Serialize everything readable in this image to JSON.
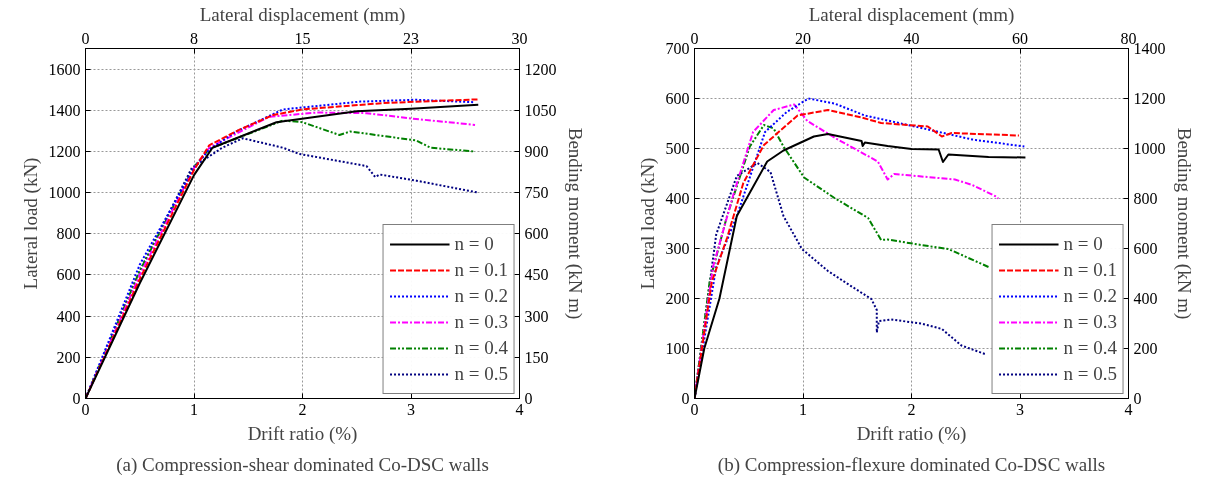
{
  "chart_data": [
    {
      "type": "line",
      "xlabel": "Drift ratio (%)",
      "ylabel": "Lateral load (kN)",
      "y2label": "Bending moment (kN m)",
      "x2label": "Lateral displacement (mm)",
      "annotations": [
        "(a) Compression-shear dominated Co-DSC walls"
      ],
      "xlim": [
        0,
        4
      ],
      "xticks": [
        0,
        1,
        2,
        3,
        4
      ],
      "ylim": [
        0,
        1700
      ],
      "yticks": [
        0,
        200,
        400,
        600,
        800,
        1000,
        1200,
        1400,
        1600
      ],
      "y2lim": [
        0,
        1275
      ],
      "y2ticks": [
        0,
        150,
        300,
        450,
        600,
        750,
        900,
        1050,
        1200
      ],
      "x2lim": [
        0,
        30
      ],
      "x2ticks": [
        0,
        {
          "value": 7.5,
          "label": "8"
        },
        15,
        {
          "value": 22.5,
          "label": "23"
        },
        30
      ],
      "grid": true,
      "legend": "bottom right",
      "series": [
        {
          "name": "n = 0",
          "color": "#000000",
          "line_style": "solid",
          "x": [
            0,
            0.5,
            1.0,
            1.17,
            1.76,
            2.5,
            3.0,
            3.62
          ],
          "values": [
            0,
            560,
            1085,
            1218,
            1342,
            1395,
            1407,
            1427
          ]
        },
        {
          "name": "n = 0.1",
          "color": "#ff0000",
          "line_style": "dashed",
          "x": [
            0,
            0.5,
            1.0,
            1.14,
            1.42,
            1.73,
            2.0,
            2.74,
            3.62
          ],
          "values": [
            0,
            580,
            1110,
            1230,
            1306,
            1377,
            1404,
            1435,
            1453
          ]
        },
        {
          "name": "n = 0.2",
          "color": "#0000ff",
          "line_style": "dotted",
          "x": [
            0,
            0.5,
            1.0,
            1.14,
            1.39,
            1.82,
            2.53,
            3.05,
            3.58
          ],
          "values": [
            0,
            650,
            1120,
            1209,
            1297,
            1404,
            1442,
            1451,
            1439
          ]
        },
        {
          "name": "n = 0.3",
          "color": "#ff00ff",
          "line_style": "dashdot",
          "x": [
            0,
            0.5,
            1.0,
            1.14,
            1.69,
            2.13,
            2.59,
            3.02,
            3.59
          ],
          "values": [
            0,
            600,
            1120,
            1218,
            1368,
            1389,
            1386,
            1359,
            1329
          ]
        },
        {
          "name": "n = 0.4",
          "color": "#008000",
          "line_style": "dashdotdot",
          "x": [
            0,
            0.5,
            1.0,
            1.14,
            1.82,
            2.0,
            2.34,
            2.44,
            3.05,
            3.18,
            3.58
          ],
          "values": [
            0,
            620,
            1125,
            1212,
            1350,
            1342,
            1280,
            1297,
            1253,
            1218,
            1200
          ]
        },
        {
          "name": "n = 0.5",
          "color": "#000080",
          "line_style": "dotted",
          "x": [
            0,
            0.5,
            0.98,
            1.26,
            1.45,
            1.82,
            1.97,
            2.59,
            2.67,
            2.71,
            3.05,
            3.62
          ],
          "values": [
            0,
            620,
            1120,
            1218,
            1264,
            1218,
            1188,
            1129,
            1076,
            1088,
            1058,
            1000
          ]
        }
      ]
    },
    {
      "type": "line",
      "xlabel": "Drift ratio (%)",
      "ylabel": "Lateral load (kN)",
      "y2label": "Bending moment (kN m)",
      "x2label": "Lateral displacement (mm)",
      "annotations": [
        "(b) Compression-flexure dominated Co-DSC walls"
      ],
      "xlim": [
        0,
        4
      ],
      "xticks": [
        0,
        1,
        2,
        3,
        4
      ],
      "ylim": [
        0,
        700
      ],
      "yticks": [
        0,
        100,
        200,
        300,
        400,
        500,
        600,
        700
      ],
      "y2lim": [
        0,
        1400
      ],
      "y2ticks": [
        0,
        200,
        400,
        600,
        800,
        1000,
        1200,
        1400
      ],
      "x2lim": [
        0,
        80
      ],
      "x2ticks": [
        0,
        20,
        40,
        60,
        80
      ],
      "grid": true,
      "legend": "bottom right",
      "series": [
        {
          "name": "n = 0",
          "color": "#000000",
          "line_style": "solid",
          "x": [
            0,
            0.09,
            0.23,
            0.39,
            0.67,
            0.82,
            1.1,
            1.23,
            1.54,
            1.55,
            1.57,
            1.78,
            2.0,
            2.25,
            2.29,
            2.34,
            2.71,
            3.05
          ],
          "values": [
            0,
            100,
            200,
            365,
            474,
            496,
            524,
            529,
            515,
            505,
            512,
            505,
            499,
            498,
            473,
            488,
            483,
            482
          ]
        },
        {
          "name": "n = 0.1",
          "color": "#ff0000",
          "line_style": "dashed",
          "x": [
            0,
            0.16,
            0.3,
            0.45,
            0.64,
            0.95,
            1.23,
            1.54,
            1.72,
            2.15,
            2.28,
            2.37,
            2.99
          ],
          "values": [
            0,
            234,
            321,
            431,
            507,
            566,
            577,
            562,
            551,
            544,
            524,
            531,
            526
          ]
        },
        {
          "name": "n = 0.2",
          "color": "#0000ff",
          "line_style": "dotted",
          "x": [
            0,
            0.2,
            0.39,
            0.65,
            0.85,
            1.05,
            1.29,
            1.57,
            2.03,
            2.56,
            3.04
          ],
          "values": [
            0,
            263,
            365,
            533,
            573,
            600,
            590,
            566,
            544,
            518,
            504
          ]
        },
        {
          "name": "n = 0.3",
          "color": "#ff00ff",
          "line_style": "dashdot",
          "x": [
            0,
            0.17,
            0.36,
            0.54,
            0.73,
            0.92,
            1.04,
            1.32,
            1.69,
            1.78,
            1.84,
            2.4,
            2.56,
            2.77,
            2.8
          ],
          "values": [
            0,
            263,
            409,
            533,
            577,
            588,
            555,
            518,
            474,
            438,
            449,
            438,
            427,
            405,
            400
          ]
        },
        {
          "name": "n = 0.4",
          "color": "#008000",
          "line_style": "dashdotdot",
          "x": [
            0,
            0.14,
            0.3,
            0.51,
            0.64,
            0.73,
            0.82,
            1.01,
            1.29,
            1.6,
            1.72,
            1.78,
            2.09,
            2.34,
            2.71
          ],
          "values": [
            0,
            234,
            365,
            504,
            547,
            540,
            504,
            442,
            401,
            361,
            317,
            318,
            307,
            299,
            263
          ]
        },
        {
          "name": "n = 0.5",
          "color": "#000080",
          "line_style": "dotted",
          "x": [
            0,
            0.2,
            0.39,
            0.58,
            0.7,
            0.82,
            0.99,
            1.23,
            1.42,
            1.63,
            1.68,
            1.68,
            1.7,
            1.81,
            2.09,
            2.28,
            2.46,
            2.69
          ],
          "values": [
            0,
            328,
            445,
            471,
            453,
            365,
            299,
            255,
            228,
            199,
            177,
            132,
            155,
            158,
            150,
            139,
            106,
            88
          ]
        }
      ]
    }
  ]
}
